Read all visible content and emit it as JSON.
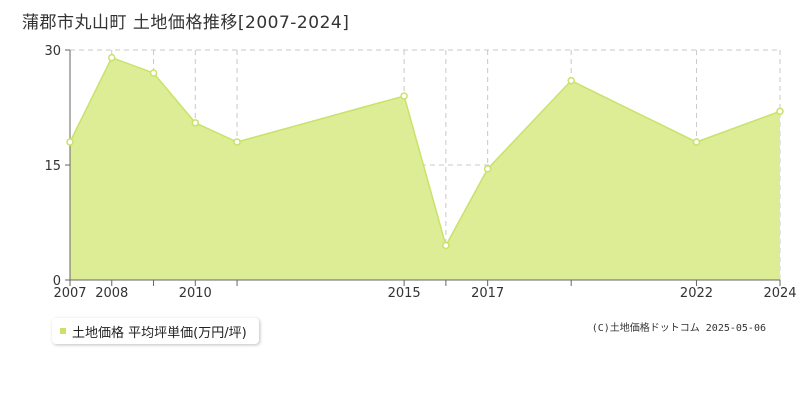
{
  "title": "蒲郡市丸山町 土地価格推移[2007-2024]",
  "legend": {
    "label": "土地価格 平均坪単価(万円/坪)"
  },
  "credit": "(C)土地価格ドットコム 2025-05-06",
  "colors": {
    "fill": "#dced96",
    "line": "#c9e26a",
    "grid": "#c8c8c8",
    "axis": "#666666"
  },
  "chart_data": {
    "type": "area",
    "title": "",
    "xlabel": "",
    "ylabel": "",
    "x": [
      2007,
      2008,
      2009,
      2010,
      2011,
      2015,
      2016,
      2017,
      2019,
      2022,
      2024
    ],
    "values": [
      18,
      29,
      27,
      20.5,
      18,
      24,
      4.5,
      14.5,
      26,
      18,
      22
    ],
    "x_tick_labels": [
      "2007",
      "2008",
      "2010",
      "2015",
      "2017",
      "2022",
      "2024"
    ],
    "y_ticks": [
      0,
      15,
      30
    ],
    "ylim": [
      0,
      30
    ],
    "grid": true,
    "legend_position": "bottom-left"
  }
}
